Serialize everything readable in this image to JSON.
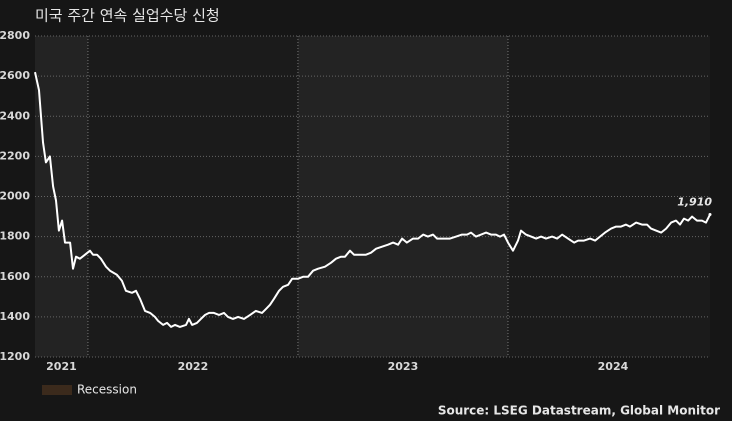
{
  "chart_data": {
    "type": "line",
    "title": "미국 주간 연속 실업수당 신청",
    "source": "Source: LSEG Datastream, Global Monitor",
    "x": [
      2021.748,
      2021.767,
      2021.786,
      2021.8,
      2021.819,
      2021.834,
      2021.848,
      2021.862,
      2021.877,
      2021.891,
      2021.915,
      2021.929,
      2021.943,
      2021.962,
      2021.986,
      2022.01,
      2022.024,
      2022.043,
      2022.062,
      2022.086,
      2022.105,
      2022.138,
      2022.162,
      2022.181,
      2022.21,
      2022.229,
      2022.248,
      2022.272,
      2022.296,
      2022.319,
      2022.334,
      2022.358,
      2022.377,
      2022.396,
      2022.415,
      2022.438,
      2022.467,
      2022.481,
      2022.496,
      2022.519,
      2022.538,
      2022.558,
      2022.577,
      2022.6,
      2022.624,
      2022.648,
      2022.667,
      2022.691,
      2022.715,
      2022.743,
      2022.772,
      2022.8,
      2022.829,
      2022.848,
      2022.867,
      2022.886,
      2022.91,
      2022.929,
      2022.953,
      2022.972,
      2023.0,
      2023.024,
      2023.048,
      2023.072,
      2023.096,
      2023.129,
      2023.158,
      2023.181,
      2023.205,
      2023.224,
      2023.248,
      2023.267,
      2023.296,
      2023.324,
      2023.348,
      2023.372,
      2023.4,
      2023.429,
      2023.453,
      2023.477,
      2023.496,
      2023.519,
      2023.548,
      2023.572,
      2023.596,
      2023.619,
      2023.643,
      2023.662,
      2023.691,
      2023.724,
      2023.753,
      2023.781,
      2023.805,
      2023.824,
      2023.848,
      2023.872,
      2023.896,
      2023.919,
      2023.943,
      2023.962,
      2023.981,
      2024.0,
      2024.024,
      2024.048,
      2024.062,
      2024.086,
      2024.11,
      2024.134,
      2024.158,
      2024.181,
      2024.21,
      2024.234,
      2024.258,
      2024.286,
      2024.315,
      2024.334,
      2024.362,
      2024.391,
      2024.415,
      2024.438,
      2024.462,
      2024.491,
      2024.515,
      2024.538,
      2024.562,
      2024.581,
      2024.61,
      2024.638,
      2024.662,
      2024.681,
      2024.705,
      2024.729,
      2024.753,
      2024.777,
      2024.8,
      2024.819,
      2024.838,
      2024.858,
      2024.877,
      2024.9,
      2024.924,
      2024.943,
      2024.962
    ],
    "values": [
      2620,
      2530,
      2270,
      2170,
      2200,
      2050,
      1980,
      1830,
      1880,
      1770,
      1770,
      1640,
      1700,
      1690,
      1710,
      1730,
      1710,
      1710,
      1690,
      1650,
      1630,
      1610,
      1580,
      1530,
      1520,
      1530,
      1490,
      1430,
      1420,
      1400,
      1380,
      1360,
      1370,
      1350,
      1360,
      1350,
      1360,
      1390,
      1360,
      1370,
      1390,
      1410,
      1420,
      1420,
      1410,
      1420,
      1400,
      1390,
      1400,
      1390,
      1410,
      1430,
      1420,
      1440,
      1460,
      1490,
      1530,
      1550,
      1560,
      1590,
      1590,
      1600,
      1600,
      1630,
      1640,
      1650,
      1670,
      1690,
      1700,
      1700,
      1730,
      1710,
      1710,
      1710,
      1720,
      1740,
      1750,
      1760,
      1770,
      1760,
      1790,
      1770,
      1790,
      1790,
      1810,
      1800,
      1810,
      1790,
      1790,
      1790,
      1800,
      1810,
      1810,
      1820,
      1800,
      1810,
      1820,
      1810,
      1810,
      1800,
      1810,
      1770,
      1730,
      1780,
      1830,
      1810,
      1800,
      1790,
      1800,
      1790,
      1800,
      1790,
      1810,
      1790,
      1770,
      1780,
      1780,
      1790,
      1780,
      1800,
      1820,
      1840,
      1850,
      1850,
      1860,
      1850,
      1870,
      1860,
      1860,
      1840,
      1830,
      1820,
      1840,
      1870,
      1880,
      1860,
      1890,
      1880,
      1900,
      1880,
      1880,
      1870,
      1910
    ],
    "color": "#ffffff",
    "xlim": [
      2021.748,
      2024.962
    ],
    "ylim": [
      1200,
      2800
    ],
    "yticks": [
      1200,
      1400,
      1600,
      1800,
      2000,
      2200,
      2400,
      2600,
      2800
    ],
    "xticks": [
      {
        "value": 2021.874,
        "label": "2021"
      },
      {
        "value": 2022.5,
        "label": "2022"
      },
      {
        "value": 2023.5,
        "label": "2023"
      },
      {
        "value": 2024.5,
        "label": "2024"
      }
    ],
    "xgrid": [
      2022,
      2023,
      2024
    ],
    "grid": true,
    "annotation": {
      "x": 2024.962,
      "y": 1910,
      "label": "1,910"
    },
    "legend": [
      {
        "name": "Recession",
        "color": "#3b2a1c"
      }
    ]
  }
}
